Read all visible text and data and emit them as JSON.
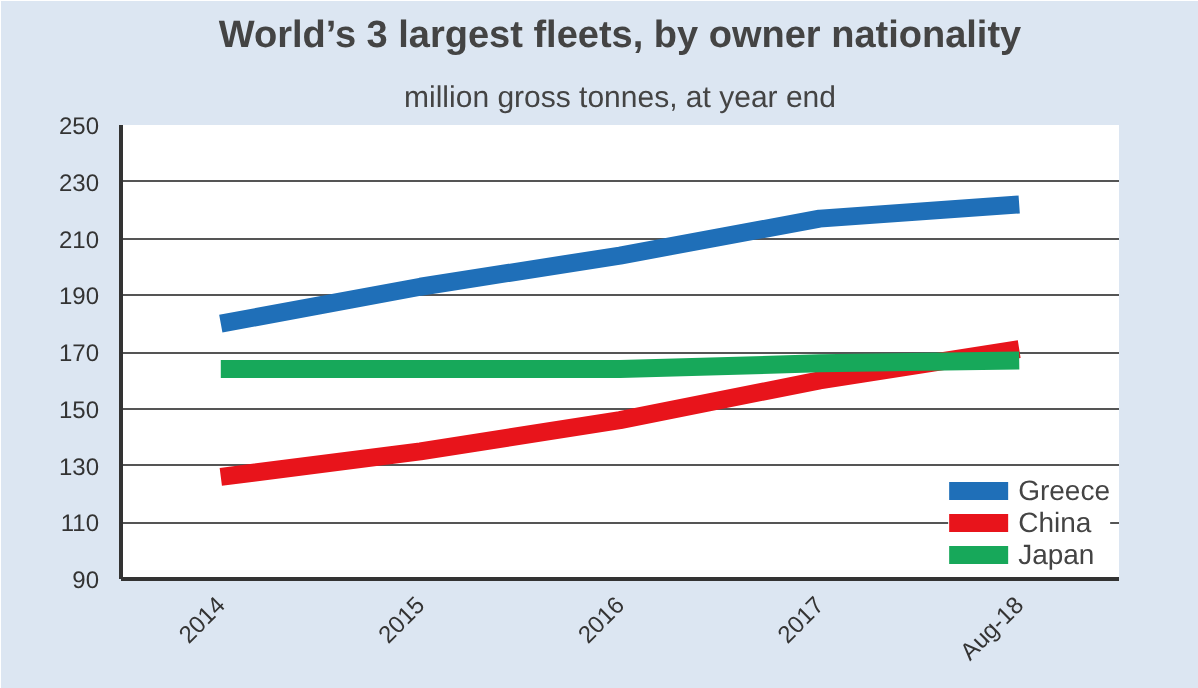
{
  "chart_data": {
    "type": "line",
    "title": "World’s 3 largest fleets, by owner nationality",
    "subtitle": "million gross tonnes, at year end",
    "categories": [
      "2014",
      "2015",
      "2016",
      "2017",
      "Aug-18"
    ],
    "series": [
      {
        "name": "Greece",
        "color": "#1f6fb8",
        "values": [
          180,
          193,
          204,
          217,
          222
        ]
      },
      {
        "name": "China",
        "color": "#e8141b",
        "values": [
          126,
          135,
          146,
          160,
          171
        ]
      },
      {
        "name": "Japan",
        "color": "#17a85a",
        "values": [
          164,
          164,
          164,
          166,
          167
        ]
      }
    ],
    "ylim": [
      90,
      250
    ],
    "yticks": [
      90,
      110,
      130,
      150,
      170,
      190,
      210,
      230,
      250
    ],
    "grid": "y",
    "legend": "bottom right",
    "marker": "none",
    "line_style": "solid"
  }
}
